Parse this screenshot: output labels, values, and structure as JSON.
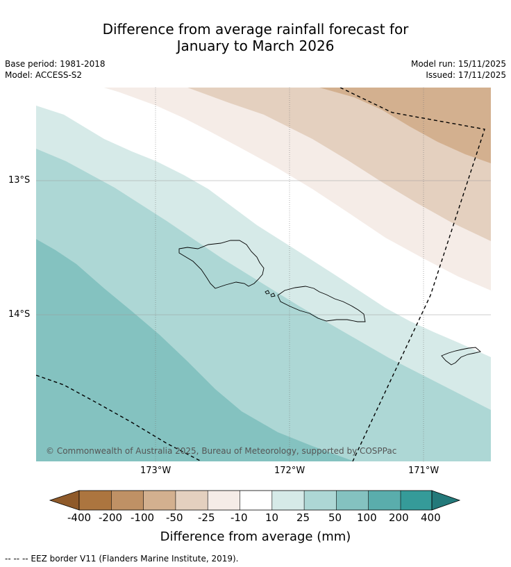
{
  "title": {
    "line1": "Difference from average rainfall forecast for",
    "line2": "January to March 2026"
  },
  "meta": {
    "base_period": "Base period: 1981-2018",
    "model": "Model: ACCESS-S2",
    "model_run": "Model run: 15/11/2025",
    "issued": "Issued: 17/11/2025"
  },
  "axes": {
    "lat_labels": [
      "13°S",
      "14°S"
    ],
    "lon_labels": [
      "173°W",
      "172°W",
      "171°W"
    ]
  },
  "copyright": "© Commonwealth of Australia 2025, Bureau of Meteorology, supported by COSPPac",
  "colorbar": {
    "title": "Difference from average (mm)",
    "tick_labels": [
      "-400",
      "-200",
      "-100",
      "-50",
      "-25",
      "-10",
      "10",
      "25",
      "50",
      "100",
      "200",
      "400"
    ],
    "colors": [
      "#8f5a2a",
      "#ac753f",
      "#bf9165",
      "#d3b08f",
      "#e4d0bf",
      "#f5ece7",
      "#ffffff",
      "#d6eae8",
      "#add7d5",
      "#84c2c0",
      "#5aadac",
      "#359b99",
      "#23797a"
    ]
  },
  "footnote": "--  --  -- EEZ border V11 (Flanders Marine Institute, 2019)."
}
